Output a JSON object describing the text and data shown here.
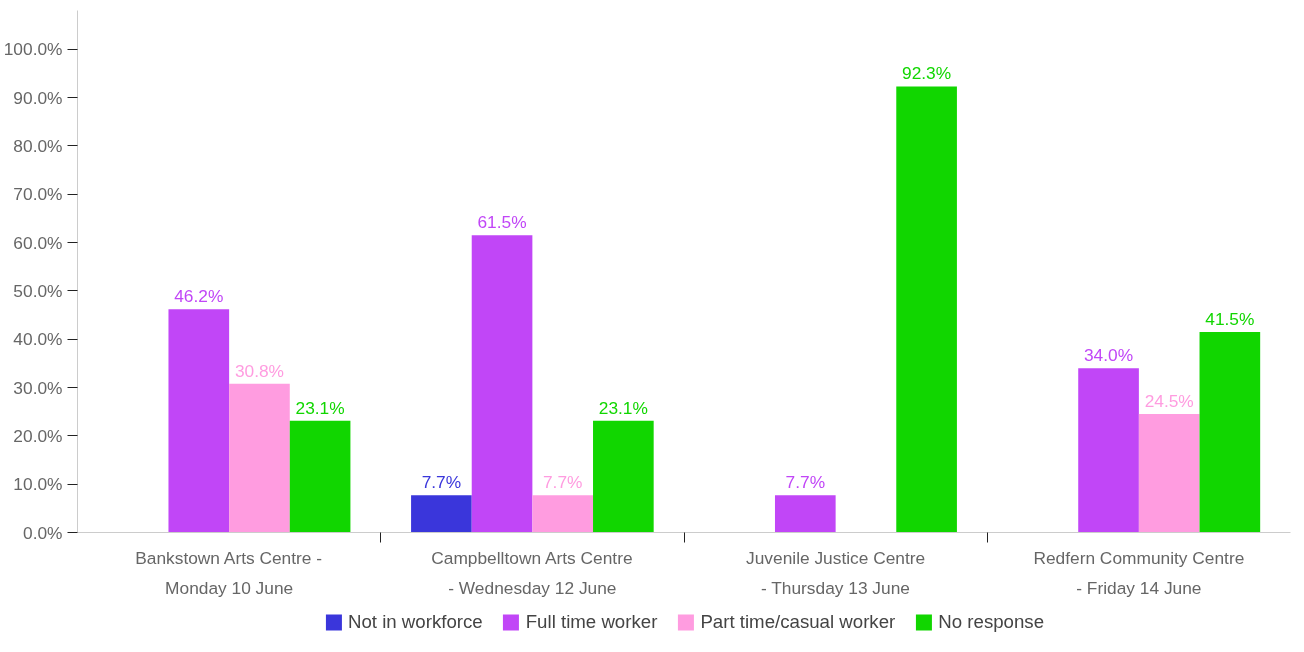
{
  "chart_data": {
    "type": "bar",
    "categories": [
      "Bankstown Arts Centre - Monday 10 June",
      "Campbelltown Arts Centre - Wednesday 12 June",
      "Juvenile Justice Centre - Thursday 13 June",
      "Redfern Community Centre - Friday 14 June"
    ],
    "series": [
      {
        "name": "Not in workforce",
        "color": "#3a36db",
        "values": [
          0,
          7.7,
          0,
          0
        ],
        "value_labels": [
          null,
          "7.7%",
          null,
          null
        ]
      },
      {
        "name": "Full time worker",
        "color": "#c146f7",
        "values": [
          46.2,
          61.5,
          7.7,
          34.0
        ],
        "value_labels": [
          "46.2%",
          "61.5%",
          "7.7%",
          "34.0%"
        ]
      },
      {
        "name": "Part time/casual worker",
        "color": "#ff9ce0",
        "values": [
          30.8,
          7.7,
          0,
          24.5
        ],
        "value_labels": [
          "30.8%",
          "7.7%",
          null,
          "24.5%"
        ]
      },
      {
        "name": "No response",
        "color": "#11d600",
        "values": [
          23.1,
          23.1,
          92.3,
          41.5
        ],
        "value_labels": [
          "23.1%",
          "23.1%",
          "92.3%",
          "41.5%"
        ]
      }
    ],
    "ylim": [
      0,
      108
    ],
    "yticks": [
      {
        "value": 0,
        "label": "0.0%"
      },
      {
        "value": 10,
        "label": "10.0%"
      },
      {
        "value": 20,
        "label": "20.0%"
      },
      {
        "value": 30,
        "label": "30.0%"
      },
      {
        "value": 40,
        "label": "40.0%"
      },
      {
        "value": 50,
        "label": "50.0%"
      },
      {
        "value": 60,
        "label": "60.0%"
      },
      {
        "value": 70,
        "label": "70.0%"
      },
      {
        "value": 80,
        "label": "80.0%"
      },
      {
        "value": 90,
        "label": "90.0%"
      },
      {
        "value": 100,
        "label": "100.0%"
      }
    ],
    "grid": false,
    "legend": "bottom"
  }
}
